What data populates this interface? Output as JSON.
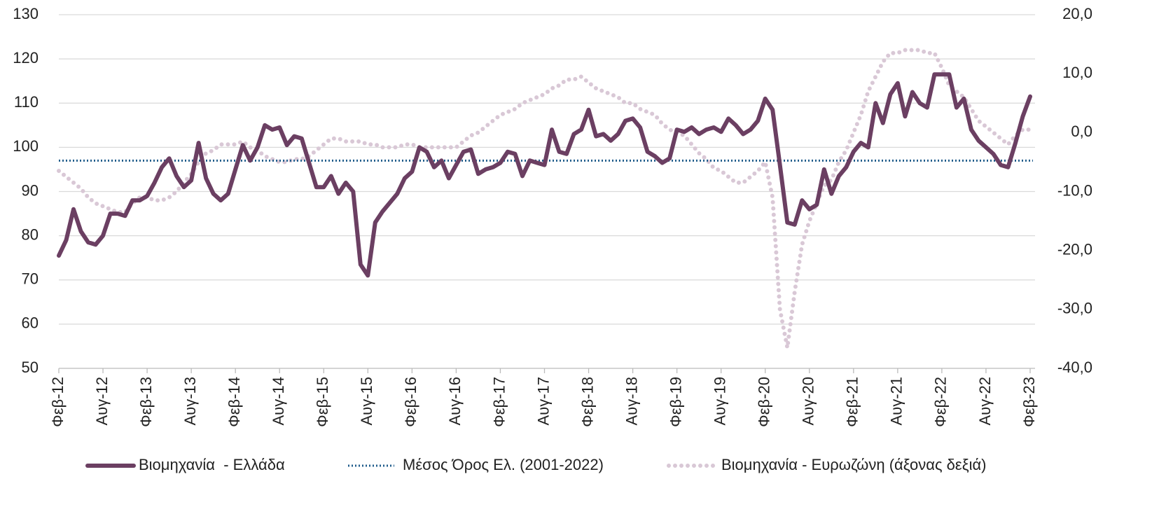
{
  "chart_data": {
    "type": "line",
    "categories": [
      "Φεβ-12",
      null,
      null,
      null,
      null,
      null,
      "Αυγ-12",
      null,
      null,
      null,
      null,
      null,
      "Φεβ-13",
      null,
      null,
      null,
      null,
      null,
      "Αυγ-13",
      null,
      null,
      null,
      null,
      null,
      "Φεβ-14",
      null,
      null,
      null,
      null,
      null,
      "Αυγ-14",
      null,
      null,
      null,
      null,
      null,
      "Φεβ-15",
      null,
      null,
      null,
      null,
      null,
      "Αυγ-15",
      null,
      null,
      null,
      null,
      null,
      "Φεβ-16",
      null,
      null,
      null,
      null,
      null,
      "Αυγ-16",
      null,
      null,
      null,
      null,
      null,
      "Φεβ-17",
      null,
      null,
      null,
      null,
      null,
      "Αυγ-17",
      null,
      null,
      null,
      null,
      null,
      "Φεβ-18",
      null,
      null,
      null,
      null,
      null,
      "Αυγ-18",
      null,
      null,
      null,
      null,
      null,
      "Φεβ-19",
      null,
      null,
      null,
      null,
      null,
      "Αυγ-19",
      null,
      null,
      null,
      null,
      null,
      "Φεβ-20",
      null,
      null,
      null,
      null,
      null,
      "Αυγ-20",
      null,
      null,
      null,
      null,
      null,
      "Φεβ-21",
      null,
      null,
      null,
      null,
      null,
      "Αυγ-21",
      null,
      null,
      null,
      null,
      null,
      "Φεβ-22",
      null,
      null,
      null,
      null,
      null,
      "Αυγ-22",
      null,
      null,
      null,
      null,
      null,
      "Φεβ-23"
    ],
    "series": [
      {
        "name": "Βιομηχανία  - Ελλάδα",
        "color": "#6b3f62",
        "style": "solid",
        "values": [
          75.5,
          79,
          86,
          81,
          78.5,
          78,
          80,
          85,
          85,
          84.5,
          88,
          88,
          89,
          92,
          95.5,
          97.5,
          93.5,
          91,
          92.5,
          101,
          93,
          89.5,
          88,
          89.5,
          95,
          100.5,
          97,
          100,
          105,
          104,
          104.5,
          100.5,
          102.5,
          102,
          96.5,
          91,
          91,
          93.5,
          89.5,
          92,
          90,
          73.5,
          71,
          83,
          85.5,
          87.5,
          89.5,
          93,
          94.5,
          100,
          99,
          95.5,
          97,
          93,
          96,
          99,
          99.5,
          94,
          95,
          95.5,
          96.5,
          99,
          98.5,
          93.5,
          97,
          96.5,
          96,
          104,
          99,
          98.5,
          103,
          104,
          108.5,
          102.5,
          103,
          101.5,
          103,
          106,
          106.5,
          104.5,
          99,
          98,
          96.5,
          97.5,
          104,
          103.5,
          104.5,
          103,
          104,
          104.5,
          103.5,
          106.5,
          105,
          103,
          104,
          106,
          111,
          108.5,
          96,
          83,
          82.5,
          88,
          86,
          87,
          95,
          89.5,
          93.5,
          95.5,
          99,
          101,
          100,
          110,
          105.5,
          112,
          114.5,
          107,
          112.5,
          110,
          109,
          116.5,
          116.5,
          116.5,
          109,
          111,
          104,
          101.5,
          100,
          98.5,
          96,
          95.5,
          101,
          107,
          111.5
        ]
      },
      {
        "name": "Μέσος Όρος Ελ. (2001-2022)",
        "color": "#1f5c8b",
        "style": "dotted",
        "value": 97
      },
      {
        "name": "Βιομηχανία - Ευρωζώνη (άξονας δεξιά)",
        "color": "#d9c8d6",
        "style": "dots",
        "axis": "y2",
        "values": [
          -6.5,
          -7.5,
          -8.5,
          -9.5,
          -11,
          -12,
          -12.5,
          -13,
          -13.5,
          -13.5,
          -12,
          -11,
          -11,
          -11.5,
          -11.5,
          -11,
          -10,
          -8.5,
          -7,
          -5,
          -3.5,
          -3,
          -2,
          -2,
          -2,
          -1.5,
          -2.5,
          -3,
          -4,
          -4.5,
          -5,
          -5,
          -4.5,
          -4.5,
          -4,
          -3,
          -2,
          -1,
          -1,
          -1.5,
          -1.5,
          -1.5,
          -2,
          -2,
          -2.5,
          -2.5,
          -2.5,
          -2,
          -2,
          -2.5,
          -2.5,
          -2.5,
          -2.5,
          -2.5,
          -2.5,
          -1.5,
          -0.5,
          0,
          1,
          2,
          3,
          3.5,
          4,
          5,
          5.5,
          6,
          6.5,
          7.5,
          8,
          9,
          9,
          9.5,
          8.5,
          7.5,
          7,
          6.5,
          6,
          5,
          5,
          4,
          3.5,
          3,
          1.5,
          0.5,
          0,
          -0.5,
          -2,
          -3.5,
          -4.5,
          -6,
          -6.5,
          -7.5,
          -8.5,
          -8.5,
          -7.5,
          -6.5,
          -5,
          -11,
          -30,
          -36.5,
          -27,
          -19,
          -15,
          -12,
          -9,
          -8,
          -5,
          -3,
          0,
          3,
          7,
          9.5,
          12,
          13.5,
          13.5,
          14,
          14,
          14,
          13.5,
          13.5,
          11,
          8,
          7,
          6,
          4,
          2,
          1,
          0,
          -1,
          -2,
          -0.5,
          0.5,
          0.5
        ]
      }
    ],
    "ylim": [
      50,
      130
    ],
    "yticks": [
      50,
      60,
      70,
      80,
      90,
      100,
      110,
      120,
      130
    ],
    "y2lim": [
      -40,
      20
    ],
    "y2ticks": [
      {
        "value": -40,
        "label": "-40,0"
      },
      {
        "value": -30,
        "label": "-30,0"
      },
      {
        "value": -20,
        "label": "-20,0"
      },
      {
        "value": -10,
        "label": "-10,0"
      },
      {
        "value": 0,
        "label": "0,0"
      },
      {
        "value": 10,
        "label": "10,0"
      },
      {
        "value": 20,
        "label": "20,0"
      }
    ],
    "grid": true,
    "legend": "bottom"
  }
}
